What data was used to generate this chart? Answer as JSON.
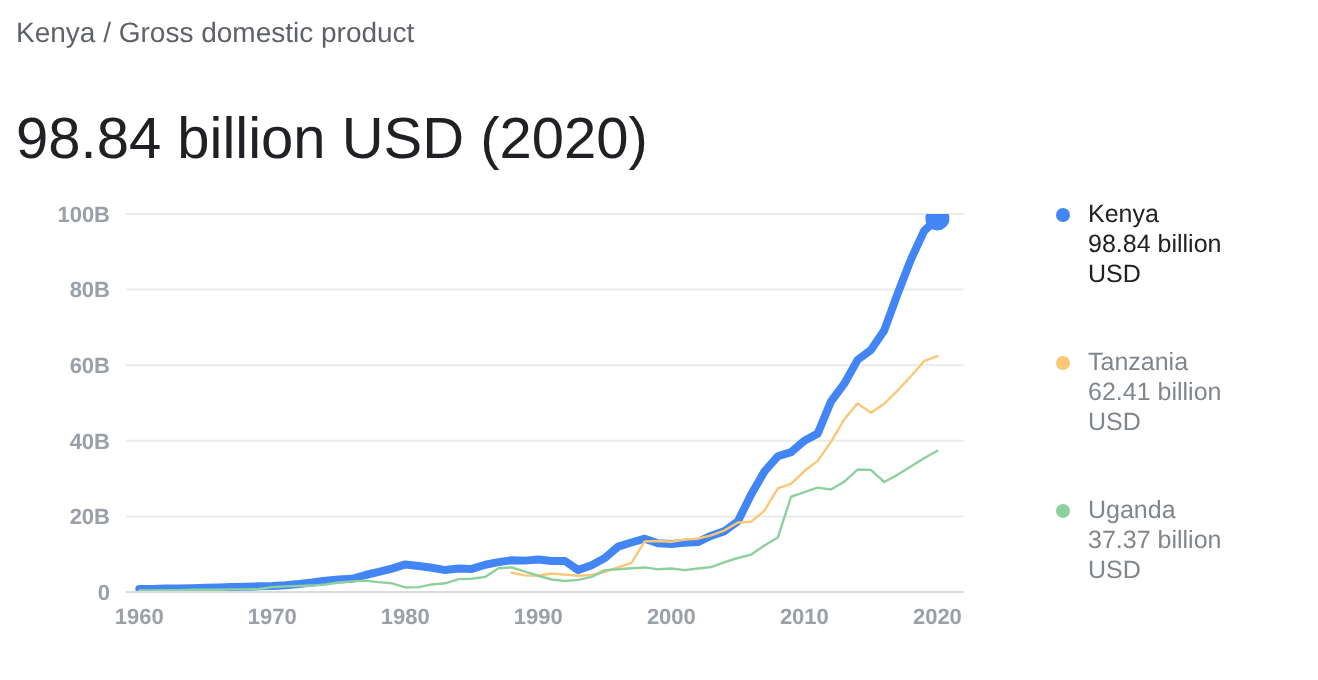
{
  "chart_data": {
    "type": "line",
    "subtitle": "Kenya / Gross domestic product",
    "title": "98.84 billion USD (2020)",
    "x": [
      1960,
      1961,
      1962,
      1963,
      1964,
      1965,
      1966,
      1967,
      1968,
      1969,
      1970,
      1971,
      1972,
      1973,
      1974,
      1975,
      1976,
      1977,
      1978,
      1979,
      1980,
      1981,
      1982,
      1983,
      1984,
      1985,
      1986,
      1987,
      1988,
      1989,
      1990,
      1991,
      1992,
      1993,
      1994,
      1995,
      1996,
      1997,
      1998,
      1999,
      2000,
      2001,
      2002,
      2003,
      2004,
      2005,
      2006,
      2007,
      2008,
      2009,
      2010,
      2011,
      2012,
      2013,
      2014,
      2015,
      2016,
      2017,
      2018,
      2019,
      2020
    ],
    "series": [
      {
        "name": "Kenya",
        "color": "#4285f4",
        "values": [
          0.8,
          0.8,
          0.9,
          0.9,
          1.0,
          1.1,
          1.2,
          1.3,
          1.4,
          1.5,
          1.6,
          1.8,
          2.1,
          2.5,
          3.0,
          3.3,
          3.5,
          4.5,
          5.3,
          6.2,
          7.3,
          6.9,
          6.4,
          5.8,
          6.2,
          6.1,
          7.2,
          7.9,
          8.4,
          8.3,
          8.6,
          8.2,
          8.2,
          5.8,
          7.1,
          9.0,
          12.0,
          13.1,
          14.1,
          12.9,
          12.7,
          13.0,
          13.2,
          14.9,
          16.1,
          18.7,
          25.8,
          31.9,
          35.9,
          37.0,
          40.0,
          41.9,
          50.4,
          55.1,
          61.4,
          64.0,
          69.2,
          78.8,
          87.9,
          95.5,
          98.84
        ]
      },
      {
        "name": "Tanzania",
        "color": "#fbc775",
        "values": [
          null,
          null,
          null,
          null,
          null,
          null,
          null,
          null,
          null,
          null,
          null,
          null,
          null,
          null,
          null,
          null,
          null,
          null,
          null,
          null,
          null,
          null,
          null,
          null,
          null,
          null,
          null,
          null,
          5.1,
          4.4,
          4.3,
          4.9,
          4.6,
          4.3,
          4.5,
          5.3,
          6.5,
          7.7,
          13.4,
          13.5,
          13.3,
          13.9,
          14.1,
          15.0,
          16.3,
          18.4,
          18.6,
          21.5,
          27.4,
          28.6,
          32.0,
          34.7,
          39.7,
          45.7,
          49.9,
          47.4,
          49.8,
          53.3,
          57.0,
          61.1,
          62.41
        ]
      },
      {
        "name": "Uganda",
        "color": "#8fd19e",
        "values": [
          0.4,
          0.4,
          0.5,
          0.5,
          0.6,
          0.6,
          0.6,
          0.7,
          0.7,
          0.8,
          1.3,
          1.5,
          1.6,
          1.7,
          2.0,
          2.5,
          2.8,
          3.0,
          2.6,
          2.3,
          1.2,
          1.3,
          2.0,
          2.3,
          3.4,
          3.5,
          4.0,
          6.3,
          6.5,
          5.4,
          4.3,
          3.3,
          2.9,
          3.2,
          4.0,
          5.8,
          6.0,
          6.3,
          6.5,
          6.0,
          6.2,
          5.8,
          6.2,
          6.6,
          7.9,
          9.0,
          9.9,
          12.3,
          14.4,
          25.2,
          26.4,
          27.6,
          27.1,
          29.2,
          32.4,
          32.3,
          29.1,
          31.0,
          33.2,
          35.4,
          37.37
        ]
      }
    ],
    "annotations": [
      "98.84 billion USD",
      "62.41 billion USD",
      "37.37 billion USD"
    ],
    "xlim": [
      1959,
      2022
    ],
    "xticks": [
      1960,
      1970,
      1980,
      1990,
      2000,
      2010,
      2020
    ],
    "ylim": [
      0,
      100
    ],
    "yticks": [
      0,
      {
        "value": 20,
        "label": "20B"
      },
      {
        "value": 40,
        "label": "40B"
      },
      {
        "value": 60,
        "label": "60B"
      },
      {
        "value": 80,
        "label": "80B"
      },
      {
        "value": 100,
        "label": "100B"
      }
    ],
    "grid": "y",
    "legend": "right",
    "marker": "none",
    "line_style": "solid"
  }
}
